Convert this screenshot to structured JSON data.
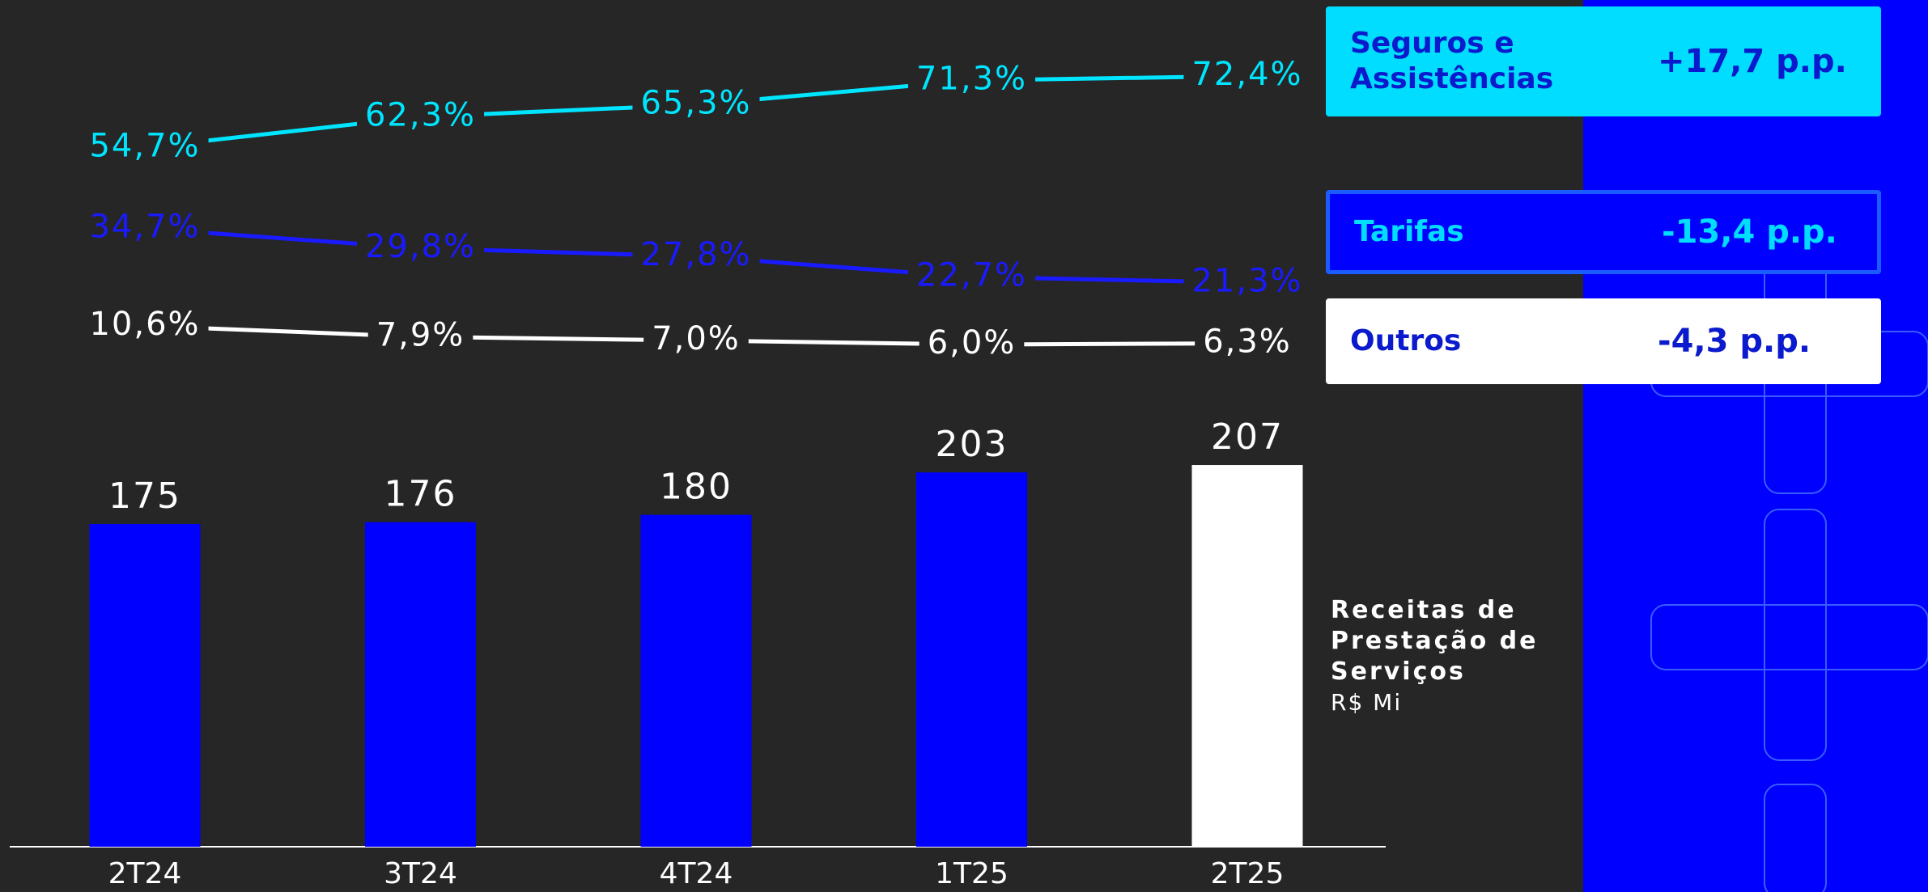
{
  "chart_data": {
    "type": "bar",
    "title": "Receitas de Prestação de Serviços",
    "subtitle": "R$ Mi",
    "categories": [
      "2T24",
      "3T24",
      "4T24",
      "1T25",
      "2T25"
    ],
    "values": [
      175,
      176,
      180,
      203,
      207
    ],
    "colors": [
      "#0000ff",
      "#0000ff",
      "#0000ff",
      "#0000ff",
      "#ffffff"
    ],
    "series": [
      {
        "name": "Seguros e Assistências",
        "color": "#00e5ff",
        "values": [
          54.7,
          62.3,
          65.3,
          71.3,
          72.4
        ],
        "value_labels": [
          "54,7%",
          "62,3%",
          "65,3%",
          "71,3%",
          "72,4%"
        ],
        "change": "+17,7 p.p."
      },
      {
        "name": "Tarifas",
        "color": "#1a1aff",
        "values": [
          34.7,
          29.8,
          27.8,
          22.7,
          21.3
        ],
        "value_labels": [
          "34,7%",
          "29,8%",
          "27,8%",
          "22,7%",
          "21,3%"
        ],
        "change": "-13,4 p.p."
      },
      {
        "name": "Outros",
        "color": "#ffffff",
        "values": [
          10.6,
          7.9,
          7.0,
          6.0,
          6.3
        ],
        "value_labels": [
          "10,6%",
          "7,9%",
          "7,0%",
          "6,0%",
          "6,3%"
        ],
        "change": "-4,3 p.p."
      }
    ]
  }
}
